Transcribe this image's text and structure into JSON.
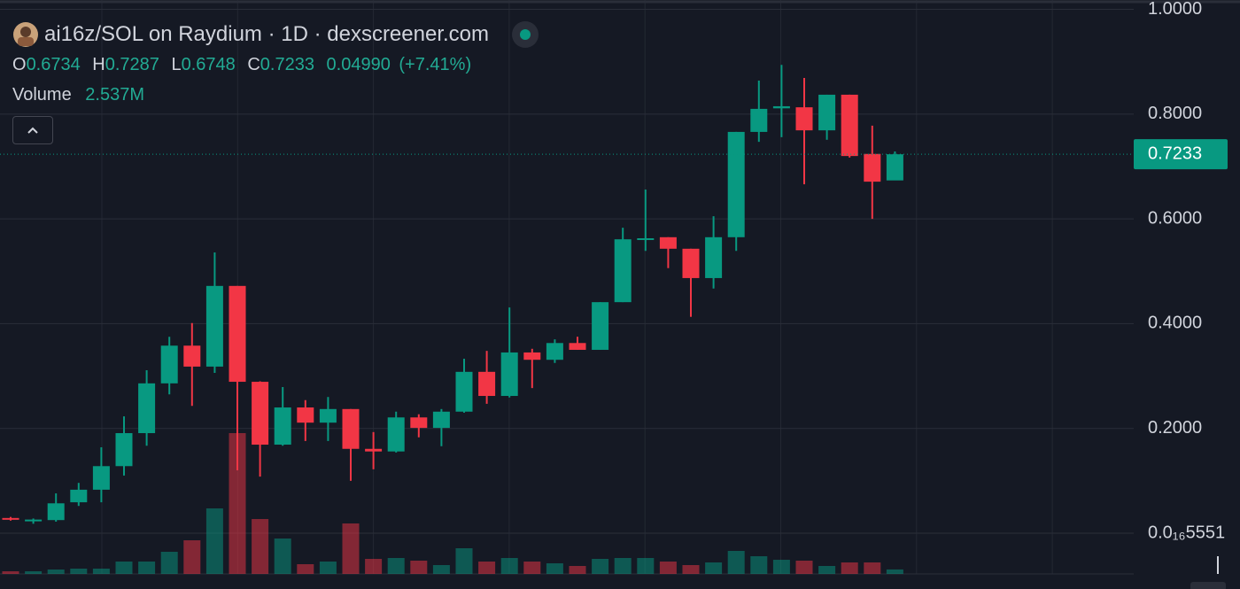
{
  "chart_data": {
    "type": "candlestick",
    "title": "ai16z/SOL on Raydium · 1D · dexscreener.com",
    "ohlc_labels": [
      "O",
      "H",
      "L",
      "C"
    ],
    "ohlc_values": [
      "0.6734",
      "0.7287",
      "0.6748",
      "0.7233"
    ],
    "change": "0.04990",
    "change_pct": "(+7.41%)",
    "volume_label": "Volume",
    "volume_value": "2.537M",
    "last_price_label": "0.7233",
    "categories": [
      null,
      null,
      null,
      null,
      null,
      null,
      null,
      null,
      null,
      null,
      null,
      null,
      null,
      null,
      null,
      null,
      null,
      null,
      null,
      null,
      null,
      null,
      null,
      null,
      null,
      null,
      null,
      null,
      null,
      null,
      null,
      null,
      null,
      null,
      null,
      null,
      null,
      null,
      null,
      null
    ],
    "open": [
      0.029,
      0.024,
      0.025,
      0.059,
      0.083,
      0.128,
      0.191,
      0.286,
      0.358,
      0.318,
      0.472,
      0.289,
      0.169,
      0.24,
      0.211,
      0.237,
      0.161,
      0.156,
      0.221,
      0.201,
      0.232,
      0.308,
      0.262,
      0.345,
      0.331,
      0.363,
      0.35,
      0.441,
      0.561,
      0.565,
      0.543,
      0.487,
      0.565,
      0.766,
      0.811,
      0.813,
      0.769,
      0.837,
      0.724,
      0.6734
    ],
    "high": [
      0.031,
      0.028,
      0.076,
      0.096,
      0.164,
      0.223,
      0.311,
      0.375,
      0.401,
      0.536,
      0.472,
      0.29,
      0.279,
      0.254,
      0.26,
      0.237,
      0.193,
      0.232,
      0.227,
      0.237,
      0.333,
      0.348,
      0.431,
      0.352,
      0.37,
      0.375,
      0.441,
      0.583,
      0.656,
      0.565,
      0.543,
      0.605,
      0.766,
      0.864,
      0.894,
      0.869,
      0.837,
      0.837,
      0.778,
      0.7287
    ],
    "low": [
      0.024,
      0.018,
      0.022,
      0.052,
      0.059,
      0.11,
      0.167,
      0.265,
      0.243,
      0.306,
      0.12,
      0.108,
      0.167,
      0.176,
      0.176,
      0.1,
      0.122,
      0.154,
      0.183,
      0.166,
      0.23,
      0.247,
      0.259,
      0.277,
      0.325,
      0.35,
      0.35,
      0.441,
      0.539,
      0.506,
      0.413,
      0.467,
      0.539,
      0.747,
      0.756,
      0.666,
      0.751,
      0.717,
      0.6,
      0.6748
    ],
    "close": [
      0.026,
      0.026,
      0.057,
      0.083,
      0.128,
      0.191,
      0.286,
      0.358,
      0.318,
      0.472,
      0.289,
      0.169,
      0.24,
      0.211,
      0.237,
      0.161,
      0.156,
      0.221,
      0.201,
      0.232,
      0.308,
      0.262,
      0.345,
      0.331,
      0.363,
      0.35,
      0.441,
      0.561,
      0.563,
      0.543,
      0.487,
      0.565,
      0.766,
      0.81,
      0.815,
      0.769,
      0.837,
      0.72,
      0.671,
      0.7233
    ],
    "volume": [
      1.5,
      1.5,
      2.5,
      3,
      3,
      7,
      7,
      12.5,
      19,
      37,
      79.5,
      31,
      20,
      5.5,
      7,
      28.5,
      8.5,
      9,
      7.5,
      5,
      14.5,
      7,
      9,
      7,
      6,
      4.5,
      8.5,
      9,
      9,
      7,
      5,
      6.5,
      13,
      10,
      8,
      7.5,
      4.5,
      6.5,
      6.5,
      2.537
    ],
    "volume_ylim": [
      0,
      324
    ],
    "up_color": "#089981",
    "down_color": "#f23645",
    "ylim": [
      -0.0778,
      1.0178
    ],
    "yticks": [
      {
        "value": 5.551e-17,
        "label": "0.0₁₆5551"
      },
      {
        "value": 0.2,
        "label": "0.2000"
      },
      {
        "value": 0.4,
        "label": "0.4000"
      },
      {
        "value": 0.6,
        "label": "0.6000"
      },
      {
        "value": 0.8,
        "label": "0.8000"
      },
      {
        "value": 1.0,
        "label": "1.0000"
      }
    ],
    "grid": true
  }
}
